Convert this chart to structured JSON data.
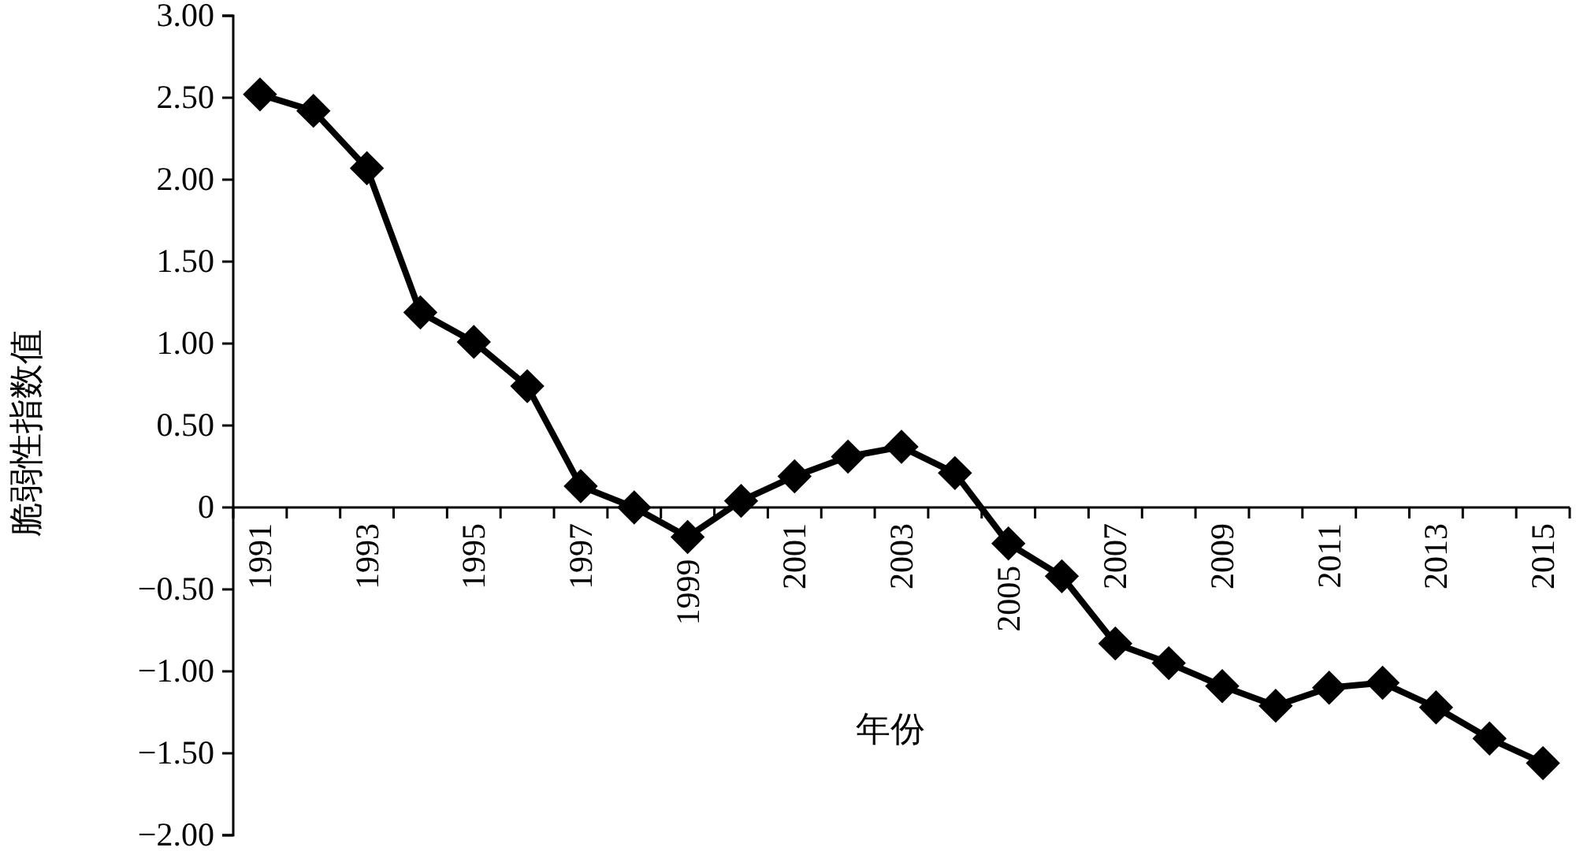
{
  "chart_data": {
    "type": "line",
    "xlabel": "年份",
    "ylabel": "脆弱性指数值",
    "categories": [
      "1991",
      null,
      "1993",
      null,
      "1995",
      null,
      "1997",
      null,
      "1999",
      null,
      "2001",
      null,
      "2003",
      null,
      "2005",
      null,
      "2007",
      null,
      "2009",
      null,
      "2011",
      null,
      "2013",
      null,
      "2015"
    ],
    "series": [
      {
        "color": "#000000",
        "values": [
          2.52,
          2.42,
          2.07,
          1.19,
          1.01,
          0.74,
          0.13,
          0.0,
          -0.18,
          0.04,
          0.19,
          0.31,
          0.37,
          0.21,
          -0.22,
          -0.42,
          -0.83,
          -0.95,
          -1.09,
          -1.21,
          -1.1,
          -1.07,
          -1.22,
          -1.41,
          -1.56
        ]
      }
    ],
    "ylim": [
      -2,
      3
    ],
    "yticks": [
      {
        "value": -2,
        "label": "−2.00"
      },
      {
        "value": -1.5,
        "label": "−1.50"
      },
      {
        "value": -1,
        "label": "−1.00"
      },
      {
        "value": -0.5,
        "label": "−0.50"
      },
      0,
      {
        "value": 0.5,
        "label": "0.50"
      },
      {
        "value": 1,
        "label": "1.00"
      },
      {
        "value": 1.5,
        "label": "1.50"
      },
      {
        "value": 2,
        "label": "2.00"
      },
      {
        "value": 2.5,
        "label": "2.50"
      },
      {
        "value": 3,
        "label": "3.00"
      }
    ],
    "marker": "diamond",
    "line_style": "solid",
    "grid": false
  }
}
